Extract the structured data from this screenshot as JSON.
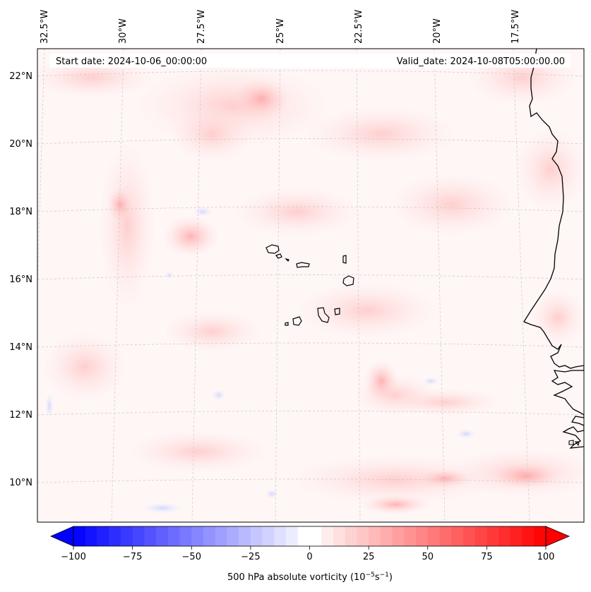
{
  "map": {
    "start_date": "Start date: 2024-10-06_00:00:00",
    "valid_date": "Valid_date: 2024-10-08T05:00:00.00",
    "longitude_labels": [
      "32.5°W",
      "30°W",
      "27.5°W",
      "25°W",
      "22.5°W",
      "20°W",
      "17.5°W"
    ],
    "latitude_labels": [
      "22°N",
      "20°N",
      "18°N",
      "16°N",
      "14°N",
      "12°N",
      "10°N"
    ]
  },
  "colorbar": {
    "label_main": "500 hPa absolute vorticity (10",
    "label_exp1": "−5",
    "label_mid": "s",
    "label_exp2": "−1",
    "label_end": ")",
    "ticks": [
      "−100",
      "−75",
      "−50",
      "−25",
      "0",
      "25",
      "50",
      "75",
      "100"
    ],
    "tick_values": [
      -100,
      -75,
      -50,
      -25,
      0,
      25,
      50,
      75,
      100
    ],
    "range": [
      -100,
      100
    ],
    "colors": {
      "negative_end": "#0000ff",
      "zero": "#ffffff",
      "positive_end": "#ff0000"
    }
  },
  "colors": {
    "background_field": "#fff6f6",
    "coastline": "#000000",
    "gridline": "#c8c8c8"
  }
}
